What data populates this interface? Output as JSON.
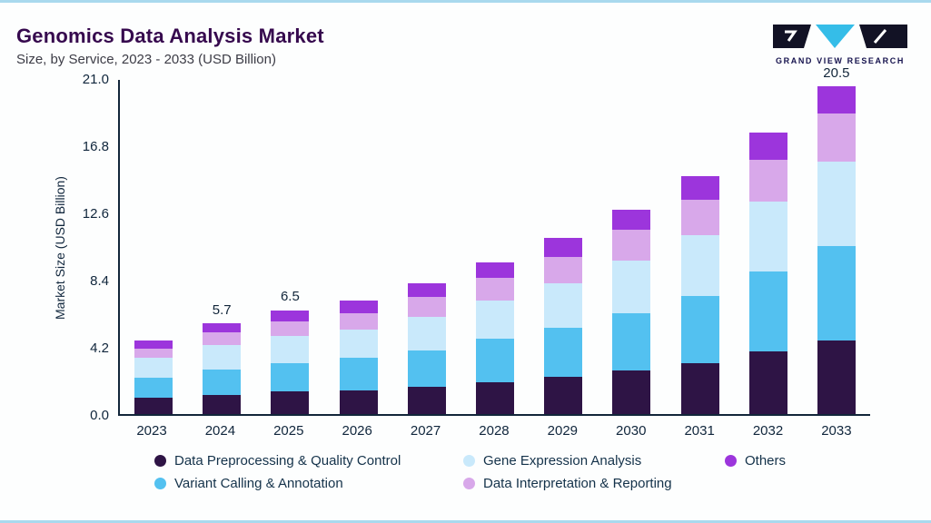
{
  "header": {
    "title": "Genomics Data Analysis Market",
    "subtitle": "Size, by Service, 2023 - 2033 (USD Billion)",
    "logo_text": "GRAND VIEW RESEARCH"
  },
  "colors": {
    "accent_cyan": "#35bde8",
    "logo_dark": "#121225",
    "frame_border": "#a9d9ee"
  },
  "chart_data": {
    "type": "bar",
    "stacked": true,
    "title": "Genomics Data Analysis Market Size, by Service, 2023 - 2033 (USD Billion)",
    "xlabel": "",
    "ylabel": "Market Size (USD Billion)",
    "ylim": [
      0,
      21.0
    ],
    "yticks": [
      0.0,
      4.2,
      8.4,
      12.6,
      16.8,
      21.0
    ],
    "grid": false,
    "legend_position": "bottom",
    "categories": [
      "2023",
      "2024",
      "2025",
      "2026",
      "2027",
      "2028",
      "2029",
      "2030",
      "2031",
      "2032",
      "2033"
    ],
    "series": [
      {
        "name": "Data Preprocessing & Quality Control",
        "color": "#2e1445",
        "values": [
          1.0,
          1.2,
          1.4,
          1.5,
          1.7,
          2.0,
          2.3,
          2.7,
          3.2,
          3.9,
          4.6
        ]
      },
      {
        "name": "Variant Calling & Annotation",
        "color": "#53c1f0",
        "values": [
          1.3,
          1.6,
          1.8,
          2.0,
          2.3,
          2.7,
          3.1,
          3.6,
          4.2,
          5.0,
          5.9
        ]
      },
      {
        "name": "Gene Expression Analysis",
        "color": "#c9e9fb",
        "values": [
          1.2,
          1.5,
          1.7,
          1.8,
          2.1,
          2.4,
          2.8,
          3.3,
          3.8,
          4.4,
          5.3
        ]
      },
      {
        "name": "Data Interpretation & Reporting",
        "color": "#d8a8ea",
        "values": [
          0.6,
          0.8,
          0.9,
          1.0,
          1.2,
          1.4,
          1.6,
          1.9,
          2.2,
          2.6,
          3.0
        ]
      },
      {
        "name": "Others",
        "color": "#9c35dc",
        "values": [
          0.5,
          0.6,
          0.7,
          0.8,
          0.9,
          1.0,
          1.2,
          1.3,
          1.5,
          1.7,
          1.7
        ]
      }
    ],
    "totals_labels": [
      "",
      "5.7",
      "6.5",
      "",
      "",
      "",
      "",
      "",
      "",
      "",
      "20.5"
    ],
    "legend_rows": [
      [
        0,
        2,
        4
      ],
      [
        1,
        3
      ]
    ]
  }
}
